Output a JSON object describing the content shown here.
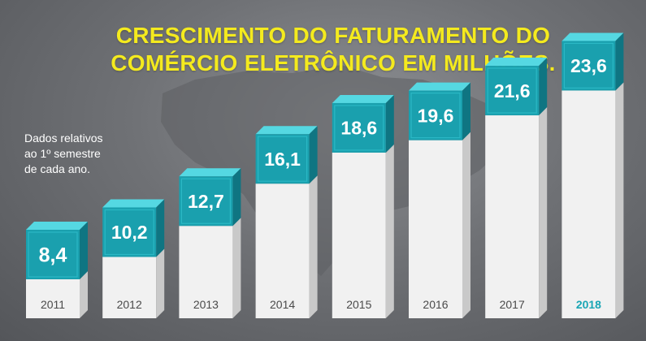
{
  "title_line1": "CRESCIMENTO DO FATURAMENTO DO",
  "title_line2": "COMÉRCIO ELETRÔNICO EM MILHÕES.",
  "note_lines": [
    "Dados relativos",
    "ao 1º semestre",
    "de cada ano."
  ],
  "colors": {
    "title": "#f4ea1e",
    "cube_front": "#1aa0ae",
    "cube_top": "#55d8e2",
    "cube_side": "#0f7582",
    "bar_front": "#f1f1f1",
    "bar_side": "#c9c9c9",
    "highlight_year": "#1aa6b5"
  },
  "chart_data": {
    "type": "bar",
    "title": "CRESCIMENTO DO FATURAMENTO DO COMÉRCIO ELETRÔNICO EM MILHÕES.",
    "categories": [
      "2011",
      "2012",
      "2013",
      "2014",
      "2015",
      "2016",
      "2017",
      "2018"
    ],
    "values": [
      8.4,
      10.2,
      12.7,
      16.1,
      18.6,
      19.6,
      21.6,
      23.6
    ],
    "value_labels": [
      "8,4",
      "10,2",
      "12,7",
      "16,1",
      "18,6",
      "19,6",
      "21,6",
      "23,6"
    ],
    "highlighted_category": "2018",
    "xlabel": "",
    "ylabel": "",
    "grid": false,
    "legend": "none"
  }
}
